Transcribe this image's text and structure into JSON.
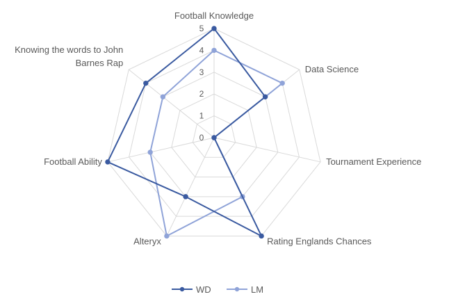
{
  "chart_data": {
    "type": "radar",
    "title": "",
    "categories": [
      "Football Knowledge",
      "Data Science",
      "Tournament Experience",
      "Rating Englands Chances",
      "Alteryx",
      "Football Ability",
      "Knowing the words to John Barnes Rap"
    ],
    "category_label_lines": [
      [
        "Football Knowledge"
      ],
      [
        "Data Science"
      ],
      [
        "Tournament Experience"
      ],
      [
        "Rating Englands Chances"
      ],
      [
        "Alteryx"
      ],
      [
        "Football Ability"
      ],
      [
        "Knowing the words to John",
        "Barnes Rap"
      ]
    ],
    "ticks": [
      0,
      1,
      2,
      3,
      4,
      5
    ],
    "range": [
      0,
      5
    ],
    "grid": true,
    "legend_position": "bottom",
    "series": [
      {
        "name": "WD",
        "values": [
          5,
          3,
          0,
          5,
          3,
          5,
          4
        ],
        "color": "#3a5aa0"
      },
      {
        "name": "LM",
        "values": [
          4,
          4,
          0,
          3,
          5,
          3,
          3
        ],
        "color": "#8fa3d8"
      }
    ],
    "grid_color": "#d9d9d9",
    "text_color": "#595959"
  }
}
